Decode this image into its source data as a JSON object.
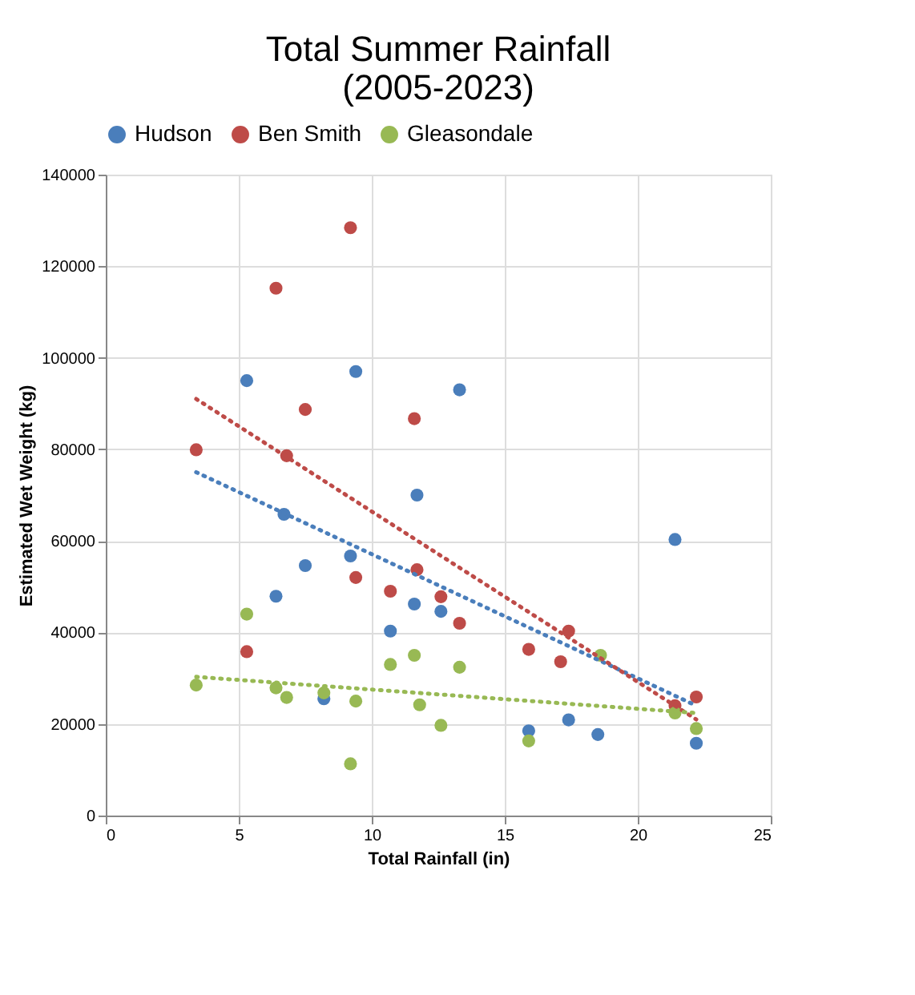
{
  "chart_data": {
    "type": "scatter",
    "title": "Total Summer Rainfall\n(2005-2023)",
    "xlabel": "Total Rainfall (in)",
    "ylabel": "Estimated Wet Weight (kg)",
    "xlim": [
      0,
      25
    ],
    "xticks": [
      0,
      5,
      10,
      15,
      20,
      25
    ],
    "ylim": [
      0,
      140000
    ],
    "yticks": [
      0,
      20000,
      40000,
      60000,
      80000,
      100000,
      120000,
      140000
    ],
    "grid": true,
    "legend": "top",
    "marker": "circle",
    "series": [
      {
        "name": "Hudson",
        "color": "#4a7ebb",
        "x": [
          5.3,
          9.4,
          13.3,
          11.7,
          6.7,
          7.5,
          9.2,
          6.4,
          11.6,
          12.6,
          10.7,
          8.2,
          15.9,
          17.4,
          18.5,
          21.4,
          22.2
        ],
        "values": [
          95000,
          97000,
          93000,
          70000,
          65800,
          54600,
          56700,
          47900,
          46200,
          44600,
          40300,
          25500,
          18500,
          20900,
          17700,
          60300,
          15800
        ]
      },
      {
        "name": "Ben Smith",
        "color": "#be4b48",
        "x": [
          9.2,
          6.4,
          7.5,
          11.6,
          3.4,
          6.8,
          11.7,
          9.4,
          10.7,
          12.6,
          13.3,
          5.3,
          15.9,
          17.4,
          17.1,
          21.4,
          22.2
        ],
        "values": [
          128400,
          115200,
          88700,
          86700,
          79900,
          78600,
          53700,
          52000,
          49000,
          47800,
          42000,
          35800,
          36300,
          40300,
          33600,
          24000,
          25900
        ]
      },
      {
        "name": "Gleasondale",
        "color": "#98b954",
        "x": [
          3.4,
          5.3,
          6.4,
          6.8,
          8.2,
          9.4,
          10.7,
          11.6,
          11.8,
          12.6,
          13.3,
          9.2,
          15.9,
          18.6,
          21.4,
          22.2
        ],
        "values": [
          28500,
          44000,
          27900,
          25800,
          26800,
          25000,
          33000,
          35000,
          24200,
          19700,
          32400,
          11300,
          16300,
          35000,
          22400,
          19000
        ]
      },
      {
        "type": "line",
        "line_style": "dotted",
        "marker": "none",
        "color": "#4a7ebb",
        "x": [
          3.4,
          22.2
        ],
        "values": [
          75000,
          24000
        ]
      },
      {
        "type": "line",
        "line_style": "dotted",
        "marker": "none",
        "color": "#be4b48",
        "x": [
          3.4,
          22.2
        ],
        "values": [
          91000,
          21000
        ]
      },
      {
        "type": "line",
        "line_style": "dotted",
        "marker": "none",
        "color": "#98b954",
        "x": [
          3.4,
          22.2
        ],
        "values": [
          30300,
          22400
        ]
      }
    ]
  }
}
